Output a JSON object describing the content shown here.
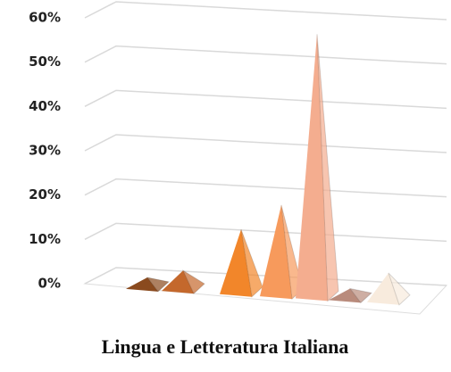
{
  "chart_data": {
    "type": "pyramid3d",
    "title": "Lingua e Letteratura Italiana",
    "categories": [
      null,
      null,
      null,
      null,
      null,
      null,
      null
    ],
    "values": [
      1,
      3,
      13,
      19,
      58,
      1,
      5
    ],
    "colors": [
      "#8a4a1e",
      "#c4682c",
      "#f2862a",
      "#f79a5c",
      "#f4ad8f",
      "#b98b7c",
      "#f8ebdd"
    ],
    "ylim": [
      0,
      60
    ],
    "yticks": [
      {
        "value": 0,
        "label": "0%"
      },
      {
        "value": 10,
        "label": "10%"
      },
      {
        "value": 20,
        "label": "20%"
      },
      {
        "value": 30,
        "label": "30%"
      },
      {
        "value": 40,
        "label": "40%"
      },
      {
        "value": 50,
        "label": "50%"
      },
      {
        "value": 60,
        "label": "60%"
      }
    ],
    "grid": true
  }
}
